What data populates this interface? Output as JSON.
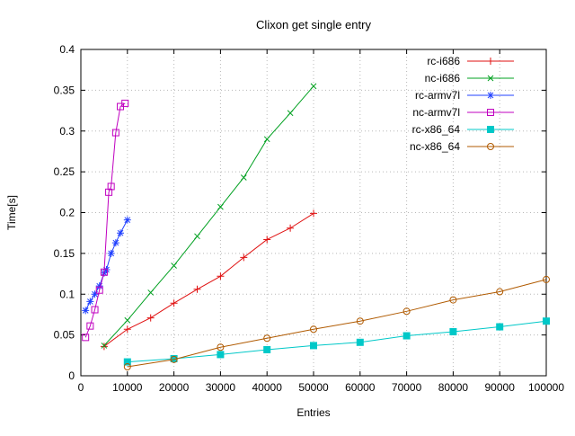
{
  "chart_data": {
    "type": "line",
    "title": "Clixon get single entry",
    "xlabel": "Entries",
    "ylabel": "Time[s]",
    "xlim": [
      0,
      100000
    ],
    "ylim": [
      0,
      0.4
    ],
    "grid": true,
    "legend_position": "top-right",
    "background": "#ffffff",
    "grid_color": "#b8b8b8",
    "axis_color": "#000000",
    "xticks": [
      {
        "v": 0,
        "label": "0"
      },
      {
        "v": 10000,
        "label": "10000"
      },
      {
        "v": 20000,
        "label": "20000"
      },
      {
        "v": 30000,
        "label": "30000"
      },
      {
        "v": 40000,
        "label": "40000"
      },
      {
        "v": 50000,
        "label": "50000"
      },
      {
        "v": 60000,
        "label": "60000"
      },
      {
        "v": 70000,
        "label": "70000"
      },
      {
        "v": 80000,
        "label": "80000"
      },
      {
        "v": 90000,
        "label": "90000"
      },
      {
        "v": 100000,
        "label": "100000"
      }
    ],
    "yticks": [
      {
        "v": 0,
        "label": "0"
      },
      {
        "v": 0.05,
        "label": "0.05"
      },
      {
        "v": 0.1,
        "label": "0.1"
      },
      {
        "v": 0.15,
        "label": "0.15"
      },
      {
        "v": 0.2,
        "label": "0.2"
      },
      {
        "v": 0.25,
        "label": "0.25"
      },
      {
        "v": 0.3,
        "label": "0.3"
      },
      {
        "v": 0.35,
        "label": "0.35"
      },
      {
        "v": 0.4,
        "label": "0.4"
      }
    ],
    "series": [
      {
        "name": "rc-i686",
        "color": "#e01010",
        "marker": "plus",
        "x": [
          5000,
          10000,
          15000,
          20000,
          25000,
          30000,
          35000,
          40000,
          45000,
          50000
        ],
        "y": [
          0.036,
          0.057,
          0.071,
          0.089,
          0.106,
          0.122,
          0.145,
          0.167,
          0.181,
          0.199
        ]
      },
      {
        "name": "nc-i686",
        "color": "#00a020",
        "marker": "cross",
        "x": [
          5000,
          10000,
          15000,
          20000,
          25000,
          30000,
          35000,
          40000,
          45000,
          50000
        ],
        "y": [
          0.037,
          0.068,
          0.102,
          0.135,
          0.171,
          0.207,
          0.243,
          0.29,
          0.322,
          0.355
        ]
      },
      {
        "name": "rc-armv7l",
        "color": "#2040ff",
        "marker": "asterisk",
        "x": [
          1000,
          2000,
          3000,
          4000,
          5000,
          5500,
          6500,
          7500,
          8500,
          10000
        ],
        "y": [
          0.08,
          0.091,
          0.1,
          0.11,
          0.126,
          0.13,
          0.15,
          0.163,
          0.175,
          0.191
        ]
      },
      {
        "name": "nc-armv7l",
        "color": "#c000c0",
        "marker": "open-square",
        "x": [
          1000,
          2000,
          3000,
          4000,
          5000,
          6000,
          6500,
          7500,
          8500,
          9500
        ],
        "y": [
          0.047,
          0.061,
          0.081,
          0.105,
          0.127,
          0.225,
          0.232,
          0.298,
          0.33,
          0.334
        ]
      },
      {
        "name": "rc-x86_64",
        "color": "#00c8c8",
        "marker": "filled-square",
        "x": [
          10000,
          20000,
          30000,
          40000,
          50000,
          60000,
          70000,
          80000,
          90000,
          100000
        ],
        "y": [
          0.017,
          0.021,
          0.026,
          0.032,
          0.037,
          0.041,
          0.049,
          0.054,
          0.06,
          0.067
        ]
      },
      {
        "name": "nc-x86_64",
        "color": "#b05a00",
        "marker": "open-circle",
        "x": [
          10000,
          20000,
          30000,
          40000,
          50000,
          60000,
          70000,
          80000,
          90000,
          100000
        ],
        "y": [
          0.011,
          0.02,
          0.035,
          0.046,
          0.057,
          0.067,
          0.079,
          0.093,
          0.103,
          0.118
        ]
      }
    ]
  }
}
